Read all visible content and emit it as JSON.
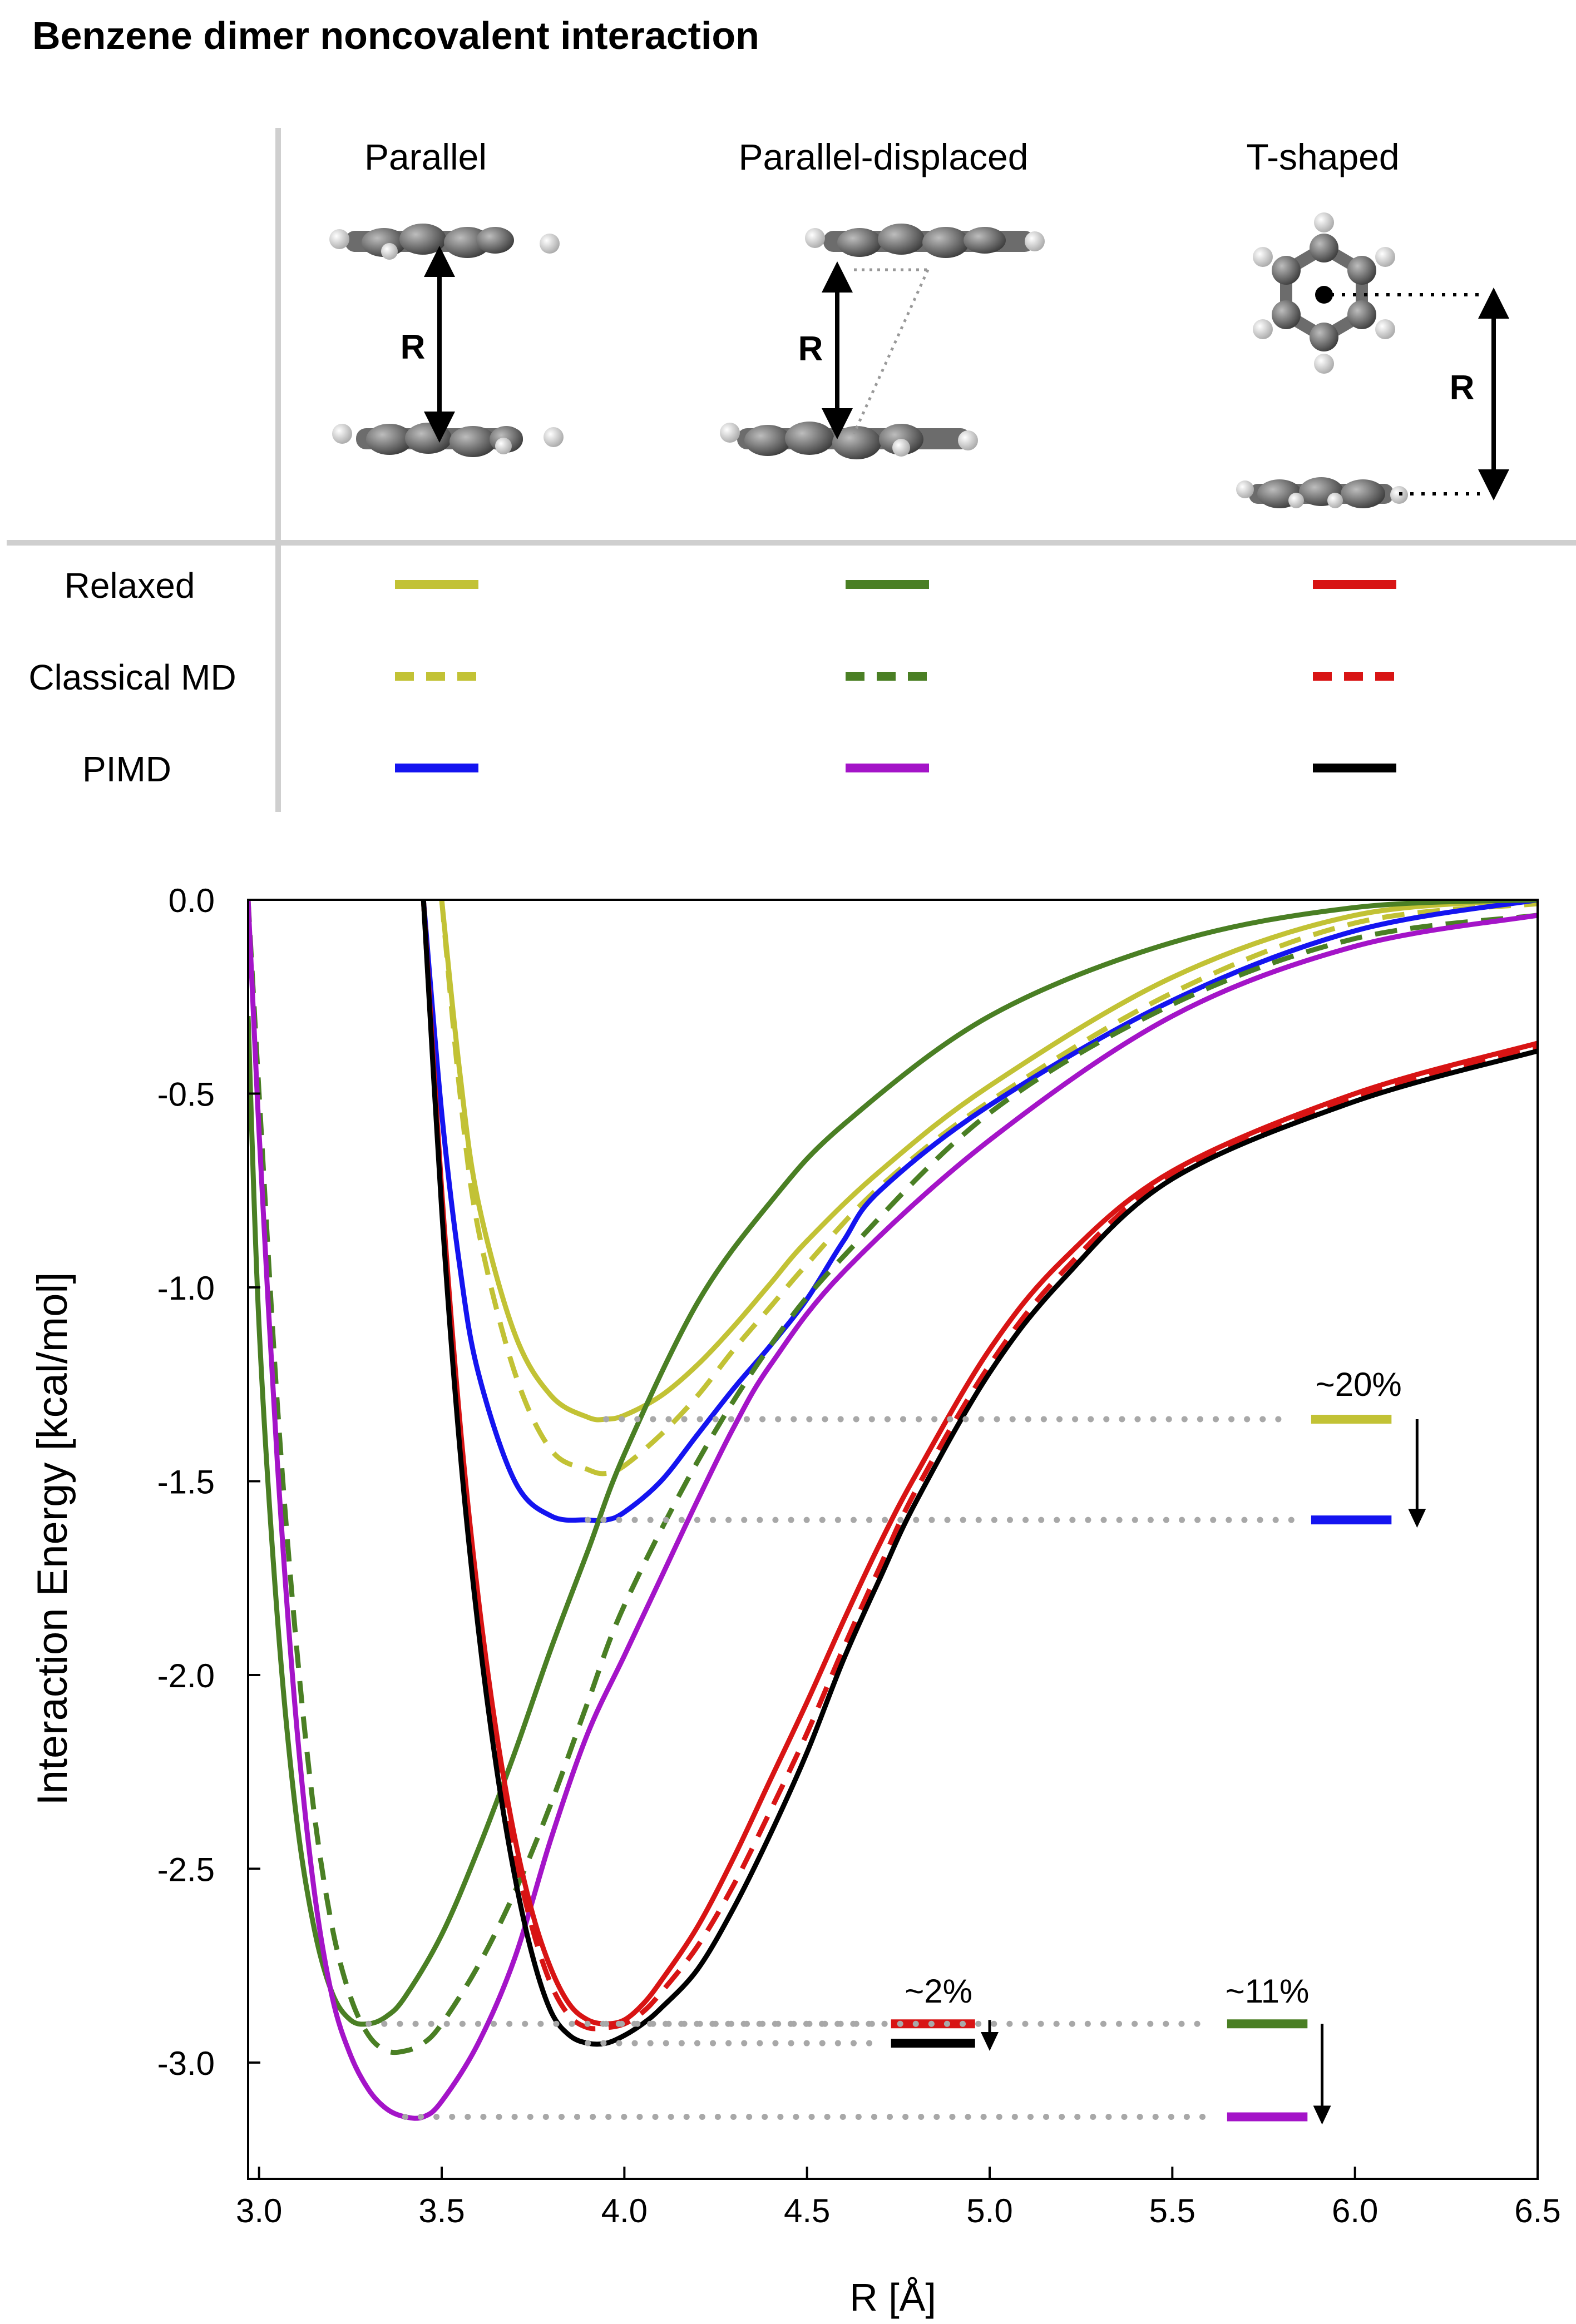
{
  "title": "Benzene dimer noncovalent interaction",
  "geometries": [
    {
      "label": "Parallel",
      "distance_label": "R"
    },
    {
      "label": "Parallel-displaced",
      "distance_label": "R"
    },
    {
      "label": "T-shaped",
      "distance_label": "R"
    }
  ],
  "methods": [
    "Relaxed",
    "Classical MD",
    "PIMD"
  ],
  "legend_colors": {
    "Parallel": [
      "#c2c235",
      "#c2c235",
      "#1414f0"
    ],
    "Parallel-displaced": [
      "#4a7f24",
      "#4a7f24",
      "#a414c8"
    ],
    "T-shaped": [
      "#d81414",
      "#d81414",
      "#000000"
    ]
  },
  "annotations": {
    "parallel_change": "~20%",
    "tshaped_change": "~2%",
    "displaced_change": "~11%"
  },
  "chart_data": {
    "type": "line",
    "title": "Benzene dimer noncovalent interaction",
    "xlabel": "R [Å]",
    "ylabel": "Interaction Energy [kcal/mol]",
    "xlim": [
      2.97,
      6.5
    ],
    "ylim": [
      -3.3,
      0.0
    ],
    "xticks": [
      3.0,
      3.5,
      4.0,
      4.5,
      5.0,
      5.5,
      6.0,
      6.5
    ],
    "xtick_labels": [
      "3.0",
      "3.5",
      "4.0",
      "4.5",
      "5.0",
      "5.5",
      "6.0",
      "6.5"
    ],
    "yticks": [
      0.0,
      -0.5,
      -1.0,
      -1.5,
      -2.0,
      -2.5,
      -3.0
    ],
    "ytick_labels": [
      "0.0",
      "-0.5",
      "-1.0",
      "-1.5",
      "-2.0",
      "-2.5",
      "-3.0"
    ],
    "series": [
      {
        "name": "Parallel Relaxed",
        "color": "#c2c235",
        "dash": "solid",
        "x": [
          3.5,
          3.55,
          3.6,
          3.7,
          3.8,
          3.9,
          3.95,
          4.0,
          4.1,
          4.2,
          4.3,
          4.4,
          4.5,
          4.7,
          5.0,
          5.5,
          6.0,
          6.5
        ],
        "y": [
          0.0,
          -0.45,
          -0.78,
          -1.12,
          -1.28,
          -1.335,
          -1.34,
          -1.33,
          -1.28,
          -1.2,
          -1.1,
          -0.99,
          -0.88,
          -0.7,
          -0.48,
          -0.2,
          -0.04,
          0.0
        ]
      },
      {
        "name": "Parallel Classical MD",
        "color": "#c2c235",
        "dash": "dashed",
        "x": [
          3.5,
          3.55,
          3.6,
          3.7,
          3.8,
          3.9,
          3.95,
          4.0,
          4.1,
          4.2,
          4.3,
          4.4,
          4.5,
          4.7,
          5.0,
          5.5,
          6.0,
          6.5
        ],
        "y": [
          0.0,
          -0.5,
          -0.85,
          -1.22,
          -1.42,
          -1.47,
          -1.48,
          -1.46,
          -1.38,
          -1.28,
          -1.16,
          -1.05,
          -0.94,
          -0.74,
          -0.52,
          -0.24,
          -0.06,
          -0.01
        ]
      },
      {
        "name": "Parallel PIMD",
        "color": "#1414f0",
        "dash": "solid",
        "x": [
          3.45,
          3.5,
          3.55,
          3.6,
          3.7,
          3.8,
          3.9,
          3.95,
          4.0,
          4.1,
          4.2,
          4.3,
          4.4,
          4.5,
          4.6,
          4.7,
          5.0,
          5.5,
          6.0,
          6.5
        ],
        "y": [
          0.0,
          -0.55,
          -0.95,
          -1.22,
          -1.5,
          -1.59,
          -1.6,
          -1.6,
          -1.58,
          -1.5,
          -1.38,
          -1.26,
          -1.15,
          -1.03,
          -0.88,
          -0.75,
          -0.53,
          -0.26,
          -0.08,
          0.0
        ]
      },
      {
        "name": "Parallel-displaced Relaxed",
        "color": "#4a7f24",
        "dash": "solid",
        "x": [
          2.97,
          3.0,
          3.05,
          3.1,
          3.15,
          3.2,
          3.25,
          3.3,
          3.35,
          3.4,
          3.5,
          3.6,
          3.7,
          3.8,
          3.9,
          4.0,
          4.2,
          4.4,
          4.6,
          5.0,
          5.5,
          6.0,
          6.5
        ],
        "y": [
          -0.3,
          -1.1,
          -1.85,
          -2.35,
          -2.65,
          -2.82,
          -2.89,
          -2.9,
          -2.88,
          -2.83,
          -2.67,
          -2.45,
          -2.2,
          -1.93,
          -1.68,
          -1.43,
          -1.04,
          -0.78,
          -0.58,
          -0.3,
          -0.11,
          -0.02,
          0.0
        ]
      },
      {
        "name": "Parallel-displaced Classical MD",
        "color": "#4a7f24",
        "dash": "dashed",
        "x": [
          2.97,
          3.0,
          3.05,
          3.1,
          3.15,
          3.2,
          3.25,
          3.3,
          3.35,
          3.4,
          3.45,
          3.5,
          3.6,
          3.7,
          3.8,
          3.9,
          4.0,
          4.2,
          4.4,
          4.6,
          5.0,
          5.5,
          6.0,
          6.5
        ],
        "y": [
          0.0,
          -0.5,
          -1.3,
          -1.9,
          -2.35,
          -2.65,
          -2.83,
          -2.93,
          -2.97,
          -2.97,
          -2.95,
          -2.9,
          -2.75,
          -2.56,
          -2.33,
          -2.07,
          -1.82,
          -1.45,
          -1.15,
          -0.92,
          -0.55,
          -0.27,
          -0.1,
          -0.04
        ]
      },
      {
        "name": "Parallel-displaced PIMD",
        "color": "#a414c8",
        "dash": "solid",
        "x": [
          2.97,
          3.0,
          3.05,
          3.1,
          3.15,
          3.2,
          3.25,
          3.3,
          3.35,
          3.4,
          3.45,
          3.5,
          3.6,
          3.7,
          3.8,
          3.9,
          4.0,
          4.1,
          4.2,
          4.3,
          4.4,
          4.6,
          5.0,
          5.5,
          6.0,
          6.5
        ],
        "y": [
          0.0,
          -0.6,
          -1.45,
          -2.1,
          -2.55,
          -2.83,
          -2.98,
          -3.07,
          -3.12,
          -3.14,
          -3.14,
          -3.1,
          -2.95,
          -2.73,
          -2.42,
          -2.15,
          -1.95,
          -1.75,
          -1.55,
          -1.36,
          -1.2,
          -0.96,
          -0.62,
          -0.3,
          -0.12,
          -0.04
        ]
      },
      {
        "name": "T-shaped Relaxed",
        "color": "#d81414",
        "dash": "solid",
        "x": [
          3.45,
          3.5,
          3.55,
          3.6,
          3.65,
          3.7,
          3.75,
          3.8,
          3.85,
          3.9,
          3.95,
          4.0,
          4.05,
          4.1,
          4.2,
          4.3,
          4.4,
          4.5,
          4.6,
          4.7,
          4.8,
          5.0,
          5.2,
          5.5,
          6.0,
          6.5
        ],
        "y": [
          0.0,
          -0.75,
          -1.35,
          -1.8,
          -2.15,
          -2.42,
          -2.62,
          -2.76,
          -2.85,
          -2.89,
          -2.9,
          -2.89,
          -2.85,
          -2.79,
          -2.65,
          -2.47,
          -2.27,
          -2.07,
          -1.86,
          -1.66,
          -1.48,
          -1.16,
          -0.93,
          -0.7,
          -0.5,
          -0.37
        ]
      },
      {
        "name": "T-shaped Classical MD",
        "color": "#d81414",
        "dash": "dashed",
        "x": [
          3.45,
          3.5,
          3.55,
          3.6,
          3.65,
          3.7,
          3.75,
          3.8,
          3.85,
          3.9,
          3.95,
          4.0,
          4.05,
          4.1,
          4.2,
          4.3,
          4.4,
          4.5,
          4.6,
          4.7,
          4.8,
          5.0,
          5.2,
          5.5,
          6.0,
          6.5
        ],
        "y": [
          0.0,
          -0.78,
          -1.38,
          -1.84,
          -2.19,
          -2.46,
          -2.66,
          -2.8,
          -2.88,
          -2.91,
          -2.91,
          -2.9,
          -2.87,
          -2.82,
          -2.7,
          -2.54,
          -2.35,
          -2.15,
          -1.93,
          -1.72,
          -1.52,
          -1.2,
          -0.96,
          -0.71,
          -0.51,
          -0.38
        ]
      },
      {
        "name": "T-shaped PIMD",
        "color": "#000000",
        "dash": "solid",
        "x": [
          3.45,
          3.5,
          3.55,
          3.6,
          3.65,
          3.7,
          3.75,
          3.8,
          3.85,
          3.9,
          3.95,
          4.0,
          4.05,
          4.1,
          4.2,
          4.3,
          4.4,
          4.5,
          4.6,
          4.7,
          4.8,
          5.0,
          5.2,
          5.5,
          6.0,
          6.5
        ],
        "y": [
          0.0,
          -0.8,
          -1.42,
          -1.88,
          -2.24,
          -2.52,
          -2.73,
          -2.87,
          -2.93,
          -2.95,
          -2.95,
          -2.93,
          -2.9,
          -2.86,
          -2.76,
          -2.6,
          -2.41,
          -2.2,
          -1.96,
          -1.75,
          -1.55,
          -1.22,
          -0.98,
          -0.72,
          -0.52,
          -0.39
        ]
      }
    ]
  }
}
